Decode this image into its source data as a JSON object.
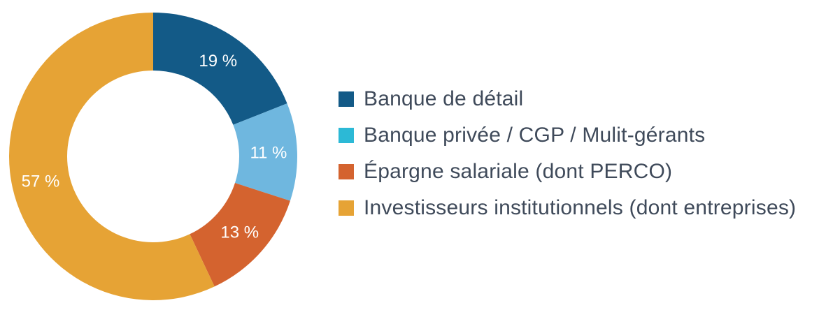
{
  "chart_data": {
    "type": "pie",
    "donut": true,
    "categories": [
      "Banque de détail",
      "Banque privée / CGP / Mulit-gérants",
      "Épargne salariale (dont PERCO)",
      "Investisseurs institutionnels (dont entreprises)"
    ],
    "values": [
      19,
      11,
      13,
      57
    ],
    "value_labels": [
      "19 %",
      "11 %",
      "13 %",
      "57 %"
    ],
    "slice_colors": [
      "#135a87",
      "#6fb7df",
      "#d4632f",
      "#e6a335"
    ],
    "legend": {
      "placement": "right",
      "entries": [
        {
          "label": "Banque de détail",
          "color": "#135a87"
        },
        {
          "label": "Banque privée / CGP / Mulit-gérants",
          "color": "#2cb9d6"
        },
        {
          "label": "Épargne salariale (dont PERCO)",
          "color": "#d4632f"
        },
        {
          "label": "Investisseurs institutionnels (dont entreprises)",
          "color": "#e6a335"
        }
      ]
    }
  }
}
